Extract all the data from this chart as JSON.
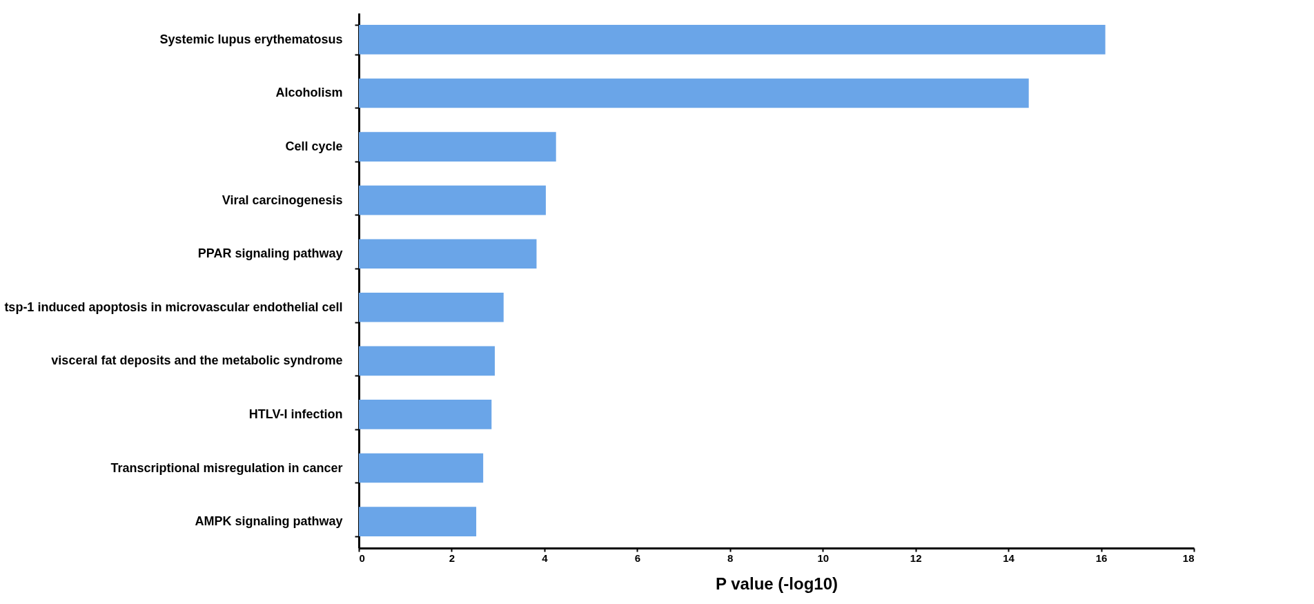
{
  "chart_data": {
    "type": "bar",
    "orientation": "horizontal",
    "xlabel": "P value (-log10)",
    "categories": [
      "Systemic lupus erythematosus",
      "Alcoholism",
      "Cell cycle",
      "Viral carcinogenesis",
      "PPAR signaling pathway",
      "tsp-1 induced apoptosis in microvascular endothelial cell",
      "visceral fat deposits and the metabolic syndrome",
      "HTLV-I infection",
      "Transcriptional misregulation in cancer",
      "AMPK signaling pathway"
    ],
    "values": [
      16.09,
      14.44,
      4.25,
      4.03,
      3.83,
      3.12,
      2.93,
      2.86,
      2.68,
      2.53
    ],
    "color": "#6aa5e8",
    "xlim": [
      0,
      18
    ],
    "xticks": [
      0,
      2,
      4,
      6,
      8,
      10,
      12,
      14,
      16,
      18
    ],
    "grid": false
  }
}
